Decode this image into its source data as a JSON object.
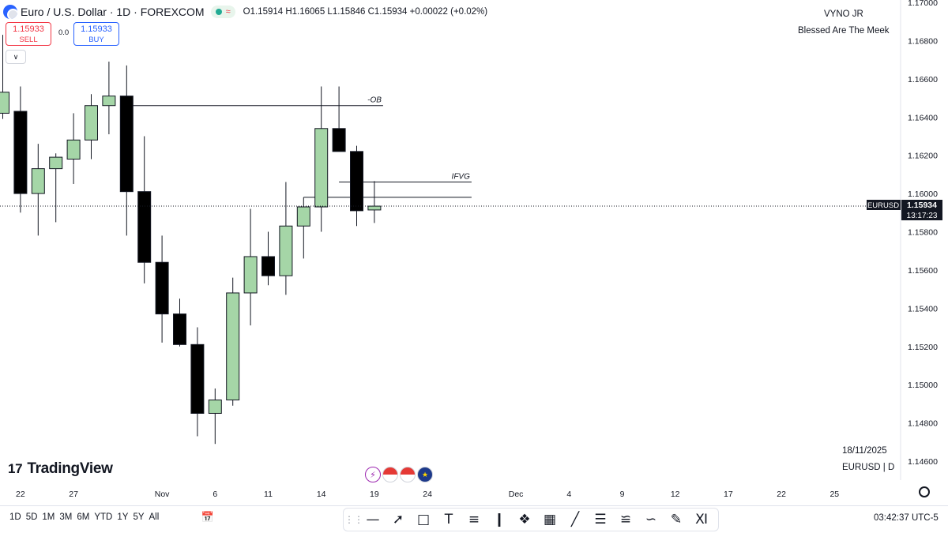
{
  "header": {
    "title": "Euro / U.S. Dollar · 1D · FOREXCOM",
    "ohlc": "O1.15914 H1.16065 L1.15846 C1.15934 +0.00022 (+0.02%)",
    "status_icon": "market-open-dot",
    "wave_icon": "≈"
  },
  "trade": {
    "sell_price": "1.15933",
    "sell_label": "SELL",
    "spread": "0.0",
    "buy_price": "1.15933",
    "buy_label": "BUY"
  },
  "collapse_icon": "chevron-down-icon",
  "watermark": {
    "name": "VYNO JR",
    "subtitle": "Blessed Are The Meek",
    "date": "18/11/2025",
    "symbol_interval": "EURUSD | D"
  },
  "logo": {
    "text": "TradingView",
    "mark": "17"
  },
  "price_label": {
    "symbol": "EURUSD",
    "price": "1.15934",
    "countdown": "13:17:23"
  },
  "range_buttons": [
    "1D",
    "5D",
    "1M",
    "3M",
    "6M",
    "YTD",
    "1Y",
    "5Y",
    "All"
  ],
  "clock": "03:42:37 UTC-5",
  "tools": [
    "grip-icon",
    "horizontal-line-icon",
    "trend-line-icon",
    "rectangle-icon",
    "text-icon",
    "fib-icon",
    "long-position-icon",
    "node-icon",
    "grid-icon",
    "ray-icon",
    "parallel-channel-icon",
    "channel-icon",
    "path-icon",
    "brush-icon",
    "measure-icon"
  ],
  "colors": {
    "bull": "#a5d6a7",
    "bear": "#000000",
    "line": "#131722"
  },
  "chart_data": {
    "type": "candlestick",
    "ylim": [
      1.1455,
      1.17
    ],
    "yticks": [
      1.146,
      1.148,
      1.15,
      1.152,
      1.154,
      1.156,
      1.158,
      1.16,
      1.162,
      1.164,
      1.166,
      1.168,
      1.17
    ],
    "ytick_labels": [
      "1.14600",
      "1.14800",
      "1.15000",
      "1.15200",
      "1.15400",
      "1.15600",
      "1.15800",
      "1.16000",
      "1.16200",
      "1.16400",
      "1.16600",
      "1.16800",
      "1.17000"
    ],
    "xtick_labels": [
      {
        "label": "22",
        "index": 1
      },
      {
        "label": "27",
        "index": 4
      },
      {
        "label": "Nov",
        "index": 9
      },
      {
        "label": "6",
        "index": 12
      },
      {
        "label": "11",
        "index": 15
      },
      {
        "label": "14",
        "index": 18
      },
      {
        "label": "19",
        "index": 21
      },
      {
        "label": "24",
        "index": 24
      },
      {
        "label": "Dec",
        "index": 29
      },
      {
        "label": "4",
        "index": 32
      },
      {
        "label": "9",
        "index": 35
      },
      {
        "label": "12",
        "index": 38
      },
      {
        "label": "17",
        "index": 41
      },
      {
        "label": "22",
        "index": 44
      },
      {
        "label": "25",
        "index": 47
      }
    ],
    "candles": [
      {
        "o": 1.1642,
        "h": 1.1683,
        "l": 1.1639,
        "c": 1.1653
      },
      {
        "o": 1.1643,
        "h": 1.1656,
        "l": 1.159,
        "c": 1.16
      },
      {
        "o": 1.16,
        "h": 1.1626,
        "l": 1.1578,
        "c": 1.1613
      },
      {
        "o": 1.1613,
        "h": 1.1621,
        "l": 1.1585,
        "c": 1.1619
      },
      {
        "o": 1.1618,
        "h": 1.1642,
        "l": 1.1605,
        "c": 1.1628
      },
      {
        "o": 1.1628,
        "h": 1.1652,
        "l": 1.1618,
        "c": 1.1646
      },
      {
        "o": 1.1646,
        "h": 1.1669,
        "l": 1.1631,
        "c": 1.1651
      },
      {
        "o": 1.1651,
        "h": 1.1667,
        "l": 1.1578,
        "c": 1.1601
      },
      {
        "o": 1.1601,
        "h": 1.163,
        "l": 1.1553,
        "c": 1.1564
      },
      {
        "o": 1.1564,
        "h": 1.1578,
        "l": 1.1522,
        "c": 1.1537
      },
      {
        "o": 1.1537,
        "h": 1.1545,
        "l": 1.152,
        "c": 1.1521
      },
      {
        "o": 1.1521,
        "h": 1.153,
        "l": 1.1473,
        "c": 1.1485
      },
      {
        "o": 1.1485,
        "h": 1.1498,
        "l": 1.1469,
        "c": 1.1492
      },
      {
        "o": 1.1492,
        "h": 1.1556,
        "l": 1.1489,
        "c": 1.1548
      },
      {
        "o": 1.1548,
        "h": 1.1592,
        "l": 1.1531,
        "c": 1.1567
      },
      {
        "o": 1.1567,
        "h": 1.158,
        "l": 1.1552,
        "c": 1.1557
      },
      {
        "o": 1.1557,
        "h": 1.1606,
        "l": 1.1547,
        "c": 1.1583
      },
      {
        "o": 1.1583,
        "h": 1.1598,
        "l": 1.1566,
        "c": 1.1593
      },
      {
        "o": 1.1593,
        "h": 1.1656,
        "l": 1.158,
        "c": 1.1634
      },
      {
        "o": 1.1634,
        "h": 1.1656,
        "l": 1.1622,
        "c": 1.1622
      },
      {
        "o": 1.1622,
        "h": 1.1625,
        "l": 1.1583,
        "c": 1.1591
      },
      {
        "o": 1.15914,
        "h": 1.16065,
        "l": 1.15846,
        "c": 1.15934
      }
    ],
    "lines": [
      {
        "label": "-OB",
        "price": 1.1646,
        "from_index": 7,
        "to_index": 21
      },
      {
        "label": "IFVG",
        "price": 1.1606,
        "from_index": 19,
        "to_index": 26
      },
      {
        "label": "",
        "price": 1.1598,
        "from_index": 17,
        "to_index": 26
      }
    ],
    "last_price": 1.15934
  }
}
